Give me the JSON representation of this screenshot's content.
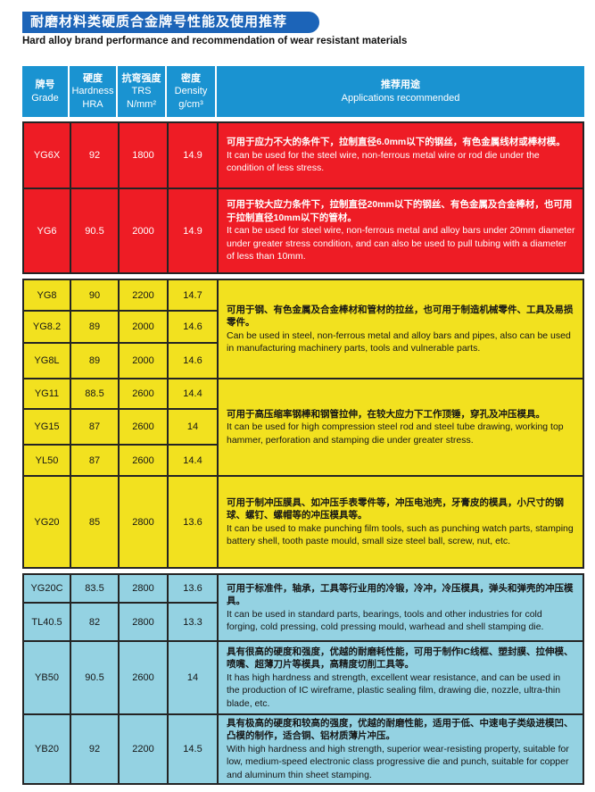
{
  "page": {
    "title_zh": "耐磨材料类硬质合金牌号性能及使用推荐",
    "subtitle_en": "Hard alloy brand performance and recommendation of wear resistant materials"
  },
  "colors": {
    "title_bar": "#1c64b8",
    "header_bg": "#1a93d1",
    "section_red": "#ee1c25",
    "section_yellow": "#f2e11f",
    "section_light_blue": "#94d2e2",
    "grid_line": "#242424"
  },
  "table": {
    "header": {
      "col1_zh": "牌号",
      "col1_en": "Grade",
      "col2_zh": "硬度",
      "col2_en": "Hardness",
      "col2_unit": "HRA",
      "col3_zh": "抗弯强度",
      "col3_en": "TRS",
      "col3_unit": "N/mm²",
      "col4_zh": "密度",
      "col4_en": "Density",
      "col4_unit": "g/cm³",
      "col5_zh": "推荐用途",
      "col5_en": "Applications recommended"
    },
    "sections": [
      {
        "name": "red",
        "groups": [
          {
            "rows": [
              {
                "grade": "YG6X",
                "hardness": "92",
                "trs": "1800",
                "density": "14.9"
              }
            ],
            "app_zh": "可用于应力不大的条件下，拉制直径6.0mm以下的钢丝，有色金属线材或棒材模。",
            "app_en": "It can be used for the steel wire, non-ferrous metal wire or rod die under the condition of less stress."
          },
          {
            "rows": [
              {
                "grade": "YG6",
                "hardness": "90.5",
                "trs": "2000",
                "density": "14.9"
              }
            ],
            "app_zh": "可用于较大应力条件下，拉制直径20mm以下的钢丝、有色金属及合金棒材，也可用于拉制直径10mm以下的管材。",
            "app_en": "It can be used for steel wire, non-ferrous metal and alloy bars under 20mm diameter under greater stress condition, and can also be used to pull tubing with a diameter of less than 10mm."
          }
        ]
      },
      {
        "name": "yellow",
        "groups": [
          {
            "rows": [
              {
                "grade": "YG8",
                "hardness": "90",
                "trs": "2200",
                "density": "14.7"
              },
              {
                "grade": "YG8.2",
                "hardness": "89",
                "trs": "2000",
                "density": "14.6"
              },
              {
                "grade": "YG8L",
                "hardness": "89",
                "trs": "2000",
                "density": "14.6"
              }
            ],
            "app_zh": "可用于钢、有色金属及合金棒材和管材的拉丝，也可用于制造机械零件、工具及易损零件。",
            "app_en": "Can be used in steel, non-ferrous metal and alloy bars and pipes, also can be used in manufacturing machinery parts, tools and vulnerable parts."
          },
          {
            "rows": [
              {
                "grade": "YG11",
                "hardness": "88.5",
                "trs": "2600",
                "density": "14.4"
              },
              {
                "grade": "YG15",
                "hardness": "87",
                "trs": "2600",
                "density": "14"
              },
              {
                "grade": "YL50",
                "hardness": "87",
                "trs": "2600",
                "density": "14.4"
              }
            ],
            "app_zh": "可用于高压缩率钢棒和钢管拉伸，在较大应力下工作顶锤，穿孔及冲压模具。",
            "app_en": "It can be used for high compression steel rod and steel tube drawing, working top hammer, perforation and stamping die under greater stress."
          },
          {
            "rows": [
              {
                "grade": "YG20",
                "hardness": "85",
                "trs": "2800",
                "density": "13.6"
              }
            ],
            "app_zh": "可用于制冲压膜具、如冲压手表零件等，冲压电池壳，牙膏皮的模具，小尺寸的钢球、螺钉、螺帽等的冲压模具等。",
            "app_en": "It can be used to make punching film tools, such as punching watch parts, stamping battery shell, tooth paste mould, small size steel ball, screw, nut, etc."
          }
        ]
      },
      {
        "name": "light-blue",
        "groups": [
          {
            "rows": [
              {
                "grade": "YG20C",
                "hardness": "83.5",
                "trs": "2800",
                "density": "13.6"
              },
              {
                "grade": "TL40.5",
                "hardness": "82",
                "trs": "2800",
                "density": "13.3"
              }
            ],
            "app_zh": "可用于标准件，轴承，工具等行业用的冷锻，冷冲，冷压模具，弹头和弹壳的冲压模具。",
            "app_en": "It can be used in standard parts, bearings, tools and other industries for cold forging, cold pressing, cold pressing mould, warhead and shell stamping die."
          },
          {
            "rows": [
              {
                "grade": "YB50",
                "hardness": "90.5",
                "trs": "2600",
                "density": "14"
              }
            ],
            "app_zh": "具有很高的硬度和强度，优越的耐磨耗性能，可用于制作IC线框、塑封膜、拉伸模、喷嘴、超薄刀片等模具，高精度切削工具等。",
            "app_en": "It has high hardness and strength, excellent wear resistance, and can be used in the production of IC wireframe, plastic sealing film, drawing die, nozzle, ultra-thin blade, etc."
          },
          {
            "rows": [
              {
                "grade": "YB20",
                "hardness": "92",
                "trs": "2200",
                "density": "14.5"
              }
            ],
            "app_zh": "具有极高的硬度和较高的强度，优越的耐磨性能，适用于低、中速电子类级进模凹、凸模的制作，适合铜、铝材质薄片冲压。",
            "app_en": "With high hardness and high strength, superior wear-resisting property, suitable for low, medium-speed electronic class progressive die and punch, suitable for copper and aluminum thin sheet stamping."
          }
        ]
      }
    ]
  }
}
